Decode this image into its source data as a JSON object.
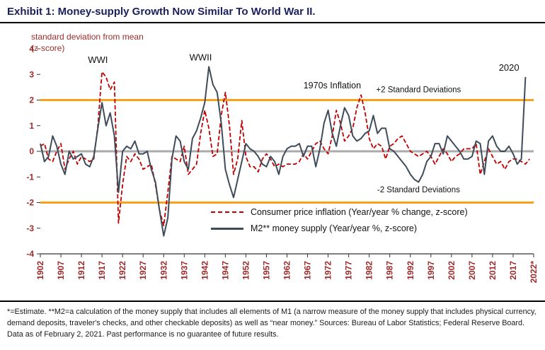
{
  "title": "Exhibit 1: Money-supply Growth Now Similar To World War II.",
  "y_axis_title_line1": "standard deviation from mean",
  "y_axis_title_line2": "(z-score)",
  "legend": {
    "cpi": "Consumer price inflation (Year/year % change, z-score)",
    "m2": "M2** money supply (Year/year %, z-score)"
  },
  "footnote": "*=Estimate.  **M2=a calculation of the money supply that includes all elements of M1 (a narrow measure of the money supply that includes physical currency, demand deposits, traveler's checks, and other checkable deposits) as well as “near money.” Sources: Bureau of Labor Statistics; Federal Reserve Board. Data as of February 2, 2021. Past performance is no guarantee of future results.",
  "colors": {
    "title": "#1A1F5E",
    "axis_labels": "#9E2B2B",
    "cpi_line": "#C00000",
    "m2_line": "#3E4C59",
    "band_lines": "#F9A11B",
    "zero_line": "#ABABAB"
  },
  "chart_data": {
    "type": "line",
    "title": "Exhibit 1: Money-supply Growth Now Similar To World War II.",
    "ylabel": "standard deviation from mean (z-score)",
    "ylim": [
      -4,
      4
    ],
    "yticks": [
      4,
      3,
      2,
      1,
      0,
      -1,
      -2,
      -3,
      -4
    ],
    "xtick_labels": [
      "1902",
      "1907",
      "1912",
      "1917",
      "1922",
      "1927",
      "1932",
      "1937",
      "1942",
      "1947",
      "1952",
      "1957",
      "1962",
      "1967",
      "1972",
      "1977",
      "1982",
      "1987",
      "1992",
      "1997",
      "2002",
      "2007",
      "2012",
      "2017",
      "2022*"
    ],
    "x": [
      1902,
      1903,
      1904,
      1905,
      1906,
      1907,
      1908,
      1909,
      1910,
      1911,
      1912,
      1913,
      1914,
      1915,
      1916,
      1917,
      1918,
      1919,
      1920,
      1921,
      1922,
      1923,
      1924,
      1925,
      1926,
      1927,
      1928,
      1929,
      1930,
      1931,
      1932,
      1933,
      1934,
      1935,
      1936,
      1937,
      1938,
      1939,
      1940,
      1941,
      1942,
      1943,
      1944,
      1945,
      1946,
      1947,
      1948,
      1949,
      1950,
      1951,
      1952,
      1953,
      1954,
      1955,
      1956,
      1957,
      1958,
      1959,
      1960,
      1961,
      1962,
      1963,
      1964,
      1965,
      1966,
      1967,
      1968,
      1969,
      1970,
      1971,
      1972,
      1973,
      1974,
      1975,
      1976,
      1977,
      1978,
      1979,
      1980,
      1981,
      1982,
      1983,
      1984,
      1985,
      1986,
      1987,
      1988,
      1989,
      1990,
      1991,
      1992,
      1993,
      1994,
      1995,
      1996,
      1997,
      1998,
      1999,
      2000,
      2001,
      2002,
      2003,
      2004,
      2005,
      2006,
      2007,
      2008,
      2009,
      2010,
      2011,
      2012,
      2013,
      2014,
      2015,
      2016,
      2017,
      2018,
      2019,
      2020,
      2021,
      2022
    ],
    "series": [
      {
        "name": "Consumer price inflation (Year/year % change, z-score)",
        "color": "#C00000",
        "dash": true,
        "values": [
          0.2,
          0.3,
          -0.3,
          -0.4,
          0.0,
          0.3,
          -0.7,
          -0.3,
          0.0,
          -0.5,
          -0.2,
          -0.3,
          -0.4,
          -0.3,
          1.0,
          3.1,
          2.9,
          2.4,
          2.7,
          -2.8,
          -1.3,
          -0.2,
          -0.4,
          -0.1,
          -0.3,
          -0.7,
          -0.6,
          -0.5,
          -1.3,
          -2.3,
          -2.9,
          -1.6,
          -0.2,
          -0.3,
          -0.4,
          0.2,
          -0.9,
          -0.7,
          -0.5,
          0.7,
          1.6,
          0.9,
          -0.2,
          -0.1,
          1.4,
          2.3,
          1.0,
          -0.9,
          -0.3,
          1.2,
          -0.2,
          -0.6,
          -0.6,
          -0.8,
          -0.3,
          -0.1,
          -0.3,
          -0.6,
          -0.5,
          -0.6,
          -0.5,
          -0.5,
          -0.5,
          -0.4,
          -0.1,
          -0.3,
          0.0,
          0.3,
          0.4,
          0.1,
          -0.1,
          0.6,
          1.6,
          1.1,
          0.4,
          0.6,
          0.9,
          1.7,
          2.2,
          1.5,
          0.5,
          0.1,
          0.3,
          0.2,
          -0.3,
          0.2,
          0.3,
          0.5,
          0.6,
          0.3,
          0.0,
          -0.1,
          -0.2,
          -0.1,
          0.0,
          -0.2,
          -0.5,
          -0.2,
          0.1,
          -0.1,
          -0.4,
          -0.2,
          -0.1,
          0.1,
          0.1,
          0.1,
          0.3,
          -0.9,
          -0.4,
          0.1,
          -0.2,
          -0.5,
          -0.4,
          -0.7,
          -0.4,
          -0.3,
          -0.3,
          -0.4,
          -0.5,
          -0.3,
          null
        ]
      },
      {
        "name": "M2** money supply (Year/year %, z-score)",
        "color": "#3E4C59",
        "dash": false,
        "values": [
          0.3,
          -0.4,
          -0.2,
          0.6,
          0.2,
          -0.5,
          -0.9,
          0.0,
          -0.3,
          -0.2,
          -0.1,
          -0.5,
          -0.6,
          -0.2,
          0.9,
          1.9,
          1.0,
          1.5,
          0.6,
          -1.6,
          0.0,
          0.2,
          0.1,
          0.4,
          -0.1,
          -0.1,
          0.0,
          -0.7,
          -1.2,
          -2.3,
          -3.3,
          -2.6,
          -0.3,
          0.6,
          0.4,
          -0.4,
          -0.7,
          0.5,
          0.8,
          1.3,
          1.9,
          3.3,
          2.6,
          2.3,
          1.1,
          -0.7,
          -1.3,
          -1.8,
          -1.1,
          -0.4,
          0.3,
          0.1,
          0.0,
          -0.2,
          -0.5,
          -0.6,
          -0.2,
          -0.4,
          -0.9,
          -0.2,
          0.1,
          0.2,
          0.2,
          0.3,
          -0.2,
          0.2,
          0.2,
          -0.6,
          0.1,
          1.1,
          1.6,
          0.7,
          0.2,
          1.0,
          1.7,
          1.4,
          0.6,
          0.4,
          0.5,
          0.7,
          0.8,
          1.4,
          0.7,
          0.9,
          0.9,
          0.1,
          0.0,
          -0.2,
          -0.4,
          -0.6,
          -0.9,
          -1.1,
          -1.2,
          -0.9,
          -0.4,
          -0.2,
          0.3,
          0.3,
          -0.1,
          0.6,
          0.4,
          0.2,
          0.0,
          -0.3,
          -0.3,
          -0.2,
          0.4,
          0.3,
          -0.9,
          0.4,
          0.6,
          0.2,
          0.0,
          0.0,
          0.2,
          -0.1,
          -0.5,
          -0.3,
          2.9,
          null,
          null
        ]
      }
    ],
    "reference_lines": [
      {
        "y": 2,
        "color": "#F9A11B",
        "width": 3,
        "name": "plus-2-sd-line"
      },
      {
        "y": 0,
        "color": "#ABABAB",
        "width": 3,
        "name": "zero-line"
      },
      {
        "y": -2,
        "color": "#F9A11B",
        "width": 3,
        "name": "minus-2-sd-line"
      }
    ],
    "annotations": [
      {
        "text": "WWI",
        "year": 1916,
        "z": 3.45,
        "size": 13
      },
      {
        "text": "WWII",
        "year": 1941,
        "z": 3.55,
        "size": 13
      },
      {
        "text": "1970s Inflation",
        "year": 1973,
        "z": 2.45,
        "size": 12.5
      },
      {
        "text": "+2 Standard Deviations",
        "year": 1994,
        "z": 2.3,
        "size": 11.5
      },
      {
        "text": "-2 Standard Deviations",
        "year": 1994,
        "z": -1.6,
        "size": 11.5
      },
      {
        "text": "2020",
        "year": 2016,
        "z": 3.15,
        "size": 13
      }
    ],
    "legend_position": "bottom-center-inside",
    "grid": false
  }
}
